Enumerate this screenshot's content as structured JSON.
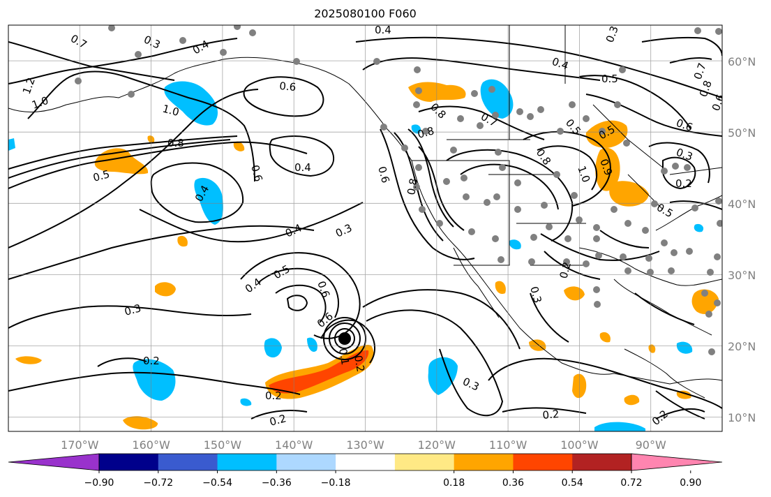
{
  "title": "2025080100 F060",
  "map": {
    "projection": "PlateCarree",
    "lon_range": [
      -178,
      -78
    ],
    "lat_range": [
      8,
      65
    ],
    "lon_ticks": [
      "170°W",
      "160°W",
      "150°W",
      "140°W",
      "130°W",
      "120°W",
      "110°W",
      "100°W",
      "90°W"
    ],
    "lat_ticks": [
      "10°N",
      "20°N",
      "30°N",
      "40°N",
      "50°N",
      "60°N"
    ],
    "grid": true,
    "marker_colors": {
      "station_dot": "#808080",
      "storm_center": "#000000"
    }
  },
  "contour_labels": [
    "0.7",
    "0.3",
    "0.4",
    "0.4",
    "0.3",
    "1.2",
    "1.0",
    "0.6",
    "1.0",
    "0.8",
    "0.5",
    "0.6",
    "0.4",
    "0.4",
    "0.4",
    "0.3",
    "0.4",
    "0.5",
    "0.6",
    "0.6",
    "0.3",
    "0.2",
    "0.2",
    "0.2",
    "0.2",
    "0.1",
    "0.6",
    "0.8",
    "0.8",
    "0.7",
    "0.4",
    "0.5",
    "0.5",
    "0.8",
    "0.6",
    "0.8",
    "0.5",
    "0.9",
    "1.0",
    "0.3",
    "0.2",
    "0.5",
    "0.2",
    "0.3",
    "0.3",
    "0.2",
    "0.2",
    "0.7",
    "0.8",
    "0.6"
  ],
  "colorbar": {
    "ticks": [
      "−0.90",
      "−0.72",
      "−0.54",
      "−0.36",
      "−0.18",
      "0.18",
      "0.36",
      "0.54",
      "0.72",
      "0.90"
    ],
    "colors": [
      "#9932cc",
      "#00008b",
      "#3a5bcf",
      "#00bfff",
      "#add8ff",
      "#ffffff",
      "#ffe985",
      "#ffa500",
      "#ff4500",
      "#b22222",
      "#ff85b0"
    ]
  }
}
